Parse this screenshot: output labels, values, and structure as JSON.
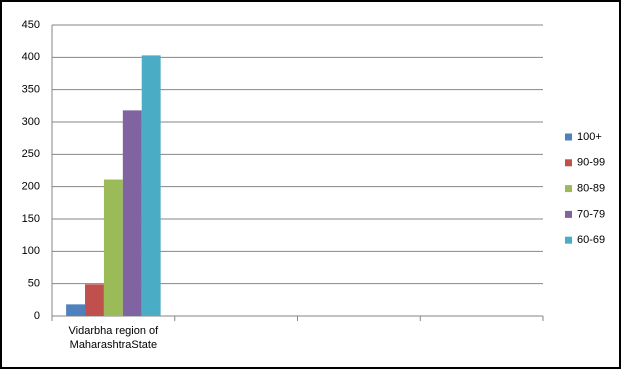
{
  "chart_data": {
    "type": "bar",
    "categories": [
      "Vidarbha region of MaharashtraState",
      null,
      null,
      null
    ],
    "series": [
      {
        "name": "100+",
        "color": "#4f81bd",
        "values": [
          18,
          null,
          null,
          null
        ]
      },
      {
        "name": "90-99",
        "color": "#c0504d",
        "values": [
          49,
          null,
          null,
          null
        ]
      },
      {
        "name": "80-89",
        "color": "#9bbb59",
        "values": [
          211,
          null,
          null,
          null
        ]
      },
      {
        "name": "70-79",
        "color": "#8064a2",
        "values": [
          318,
          null,
          null,
          null
        ]
      },
      {
        "name": "60-69",
        "color": "#4bacc6",
        "values": [
          403,
          null,
          null,
          null
        ]
      }
    ],
    "ylim": [
      0,
      450
    ],
    "yticks": [
      0,
      50,
      100,
      150,
      200,
      250,
      300,
      350,
      400,
      450
    ],
    "grid": true,
    "legend": "right"
  }
}
